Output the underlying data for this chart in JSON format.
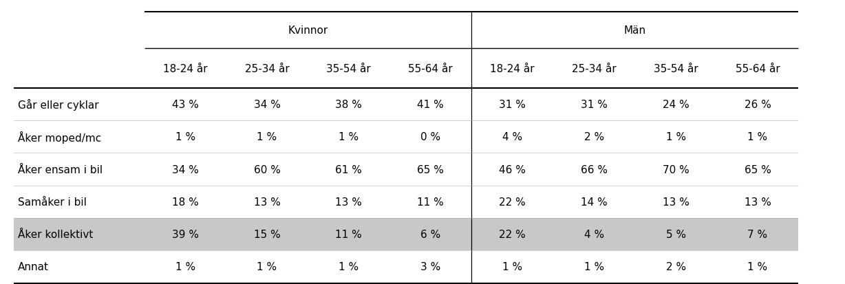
{
  "group_headers": [
    "Kvinnor",
    "Män"
  ],
  "col_headers": [
    "18-24 år",
    "25-34 år",
    "35-54 år",
    "55-64 år",
    "18-24 år",
    "25-34 år",
    "35-54 år",
    "55-64 år"
  ],
  "row_labels": [
    "Går eller cyklar",
    "Åker moped/mc",
    "Åker ensam i bil",
    "Samåker i bil",
    "Åker kollektivt",
    "Annat"
  ],
  "data": [
    [
      "43 %",
      "34 %",
      "38 %",
      "41 %",
      "31 %",
      "31 %",
      "24 %",
      "26 %"
    ],
    [
      "1 %",
      "1 %",
      "1 %",
      "0 %",
      "4 %",
      "2 %",
      "1 %",
      "1 %"
    ],
    [
      "34 %",
      "60 %",
      "61 %",
      "65 %",
      "46 %",
      "66 %",
      "70 %",
      "65 %"
    ],
    [
      "18 %",
      "13 %",
      "13 %",
      "11 %",
      "22 %",
      "14 %",
      "13 %",
      "13 %"
    ],
    [
      "39 %",
      "15 %",
      "11 %",
      "6 %",
      "22 %",
      "4 %",
      "5 %",
      "7 %"
    ],
    [
      "1 %",
      "1 %",
      "1 %",
      "3 %",
      "1 %",
      "1 %",
      "2 %",
      "1 %"
    ]
  ],
  "highlighted_row": 4,
  "highlight_color": "#c8c8c8",
  "background_color": "#ffffff",
  "text_color": "#000000",
  "font_size": 11,
  "header_font_size": 11
}
